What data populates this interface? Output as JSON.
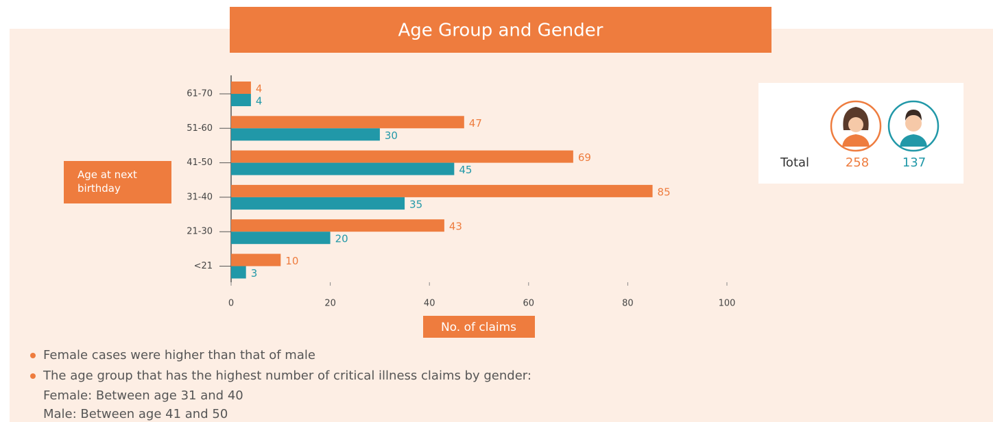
{
  "chart_data": {
    "type": "hbar",
    "title": "Age Group and Gender",
    "ylabel": "Age at next birthday",
    "xlabel": "No. of claims",
    "categories": [
      "61-70",
      "51-60",
      "41-50",
      "31-40",
      "21-30",
      "<21"
    ],
    "series": [
      {
        "color": "#ee7c3e",
        "values": [
          4,
          47,
          69,
          85,
          43,
          10
        ]
      },
      {
        "color": "#2198a8",
        "values": [
          4,
          30,
          45,
          35,
          20,
          3
        ]
      }
    ],
    "xlim": [
      0,
      100
    ],
    "xticks": [
      0,
      20,
      40,
      60,
      80,
      100
    ],
    "totals": {
      "label": "Total",
      "values": [
        258,
        137
      ]
    },
    "notes": [
      "Female cases were higher than that of male",
      "The age group that has the highest number of critical illness claims by gender:"
    ],
    "note_lines": [
      "Female: Between age 31 and 40",
      "Male: Between age 41 and 50"
    ]
  }
}
